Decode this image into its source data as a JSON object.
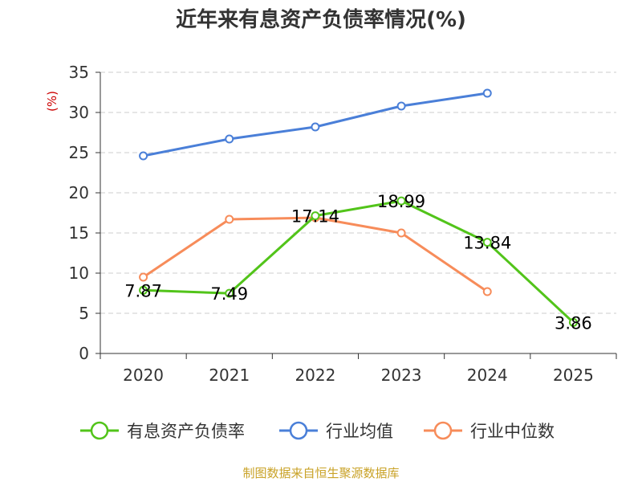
{
  "title": "近年来有息资产负债率情况(%)",
  "source": "制图数据来自恒生聚源数据库",
  "chart_data": {
    "type": "line",
    "title": "近年来有息资产负债率情况(%)",
    "ylabel": "(%)",
    "xlabel": "",
    "categories": [
      "2020",
      "2021",
      "2022",
      "2023",
      "2024",
      "2025"
    ],
    "ylim": [
      0,
      35
    ],
    "yticks": [
      0,
      5,
      10,
      15,
      20,
      25,
      30,
      35
    ],
    "grid": true,
    "legend_position": "bottom",
    "series": [
      {
        "name": "有息资产负债率",
        "color": "#52c41a",
        "values": [
          7.87,
          7.49,
          17.14,
          18.99,
          13.84,
          3.86
        ],
        "labels": [
          "7.87",
          "7.49",
          "17.14",
          "18.99",
          "13.84",
          "3.86"
        ]
      },
      {
        "name": "行业均值",
        "color": "#4a7fd8",
        "values": [
          24.6,
          26.7,
          28.2,
          30.8,
          32.4,
          null
        ]
      },
      {
        "name": "行业中位数",
        "color": "#f78c5a",
        "values": [
          9.5,
          16.7,
          16.9,
          15.0,
          7.7,
          null
        ]
      }
    ]
  }
}
